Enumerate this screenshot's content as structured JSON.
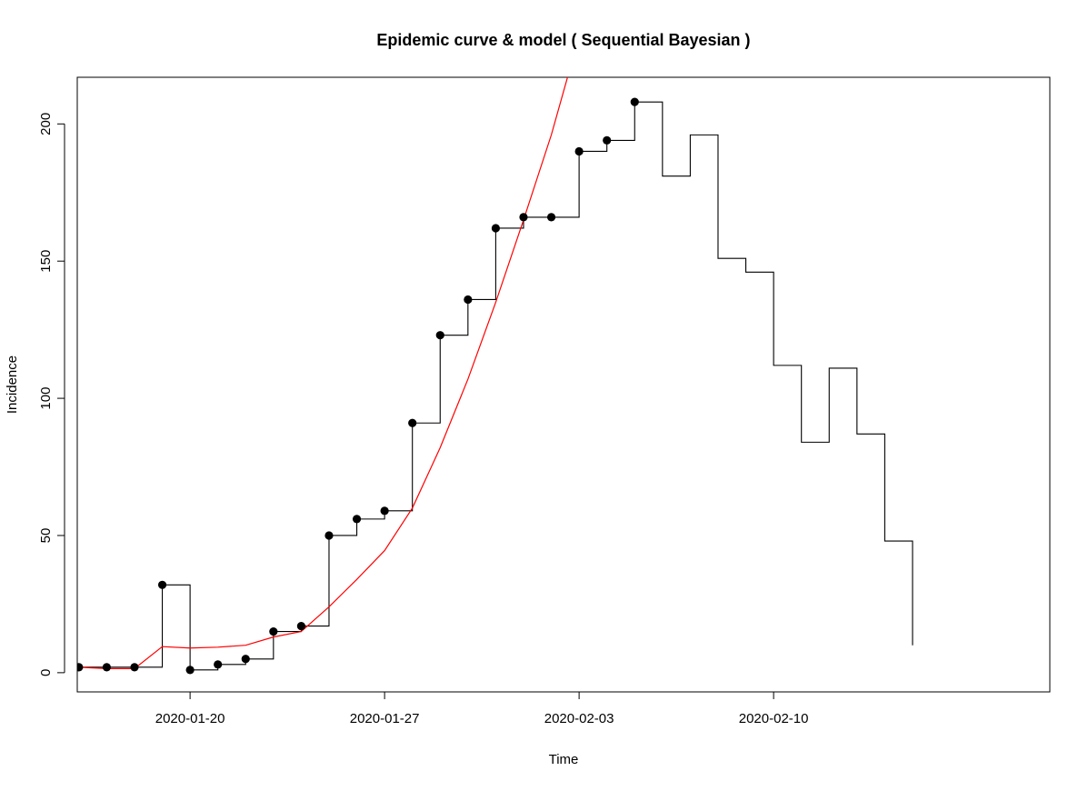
{
  "chart_data": {
    "type": "line",
    "title": "Epidemic curve & model ( Sequential Bayesian )",
    "xlabel": "Time",
    "ylabel": "Incidence",
    "x_start": "2020-01-16",
    "x_ticks": [
      "2020-01-20",
      "2020-01-27",
      "2020-02-03",
      "2020-02-10"
    ],
    "xlim": [
      "2020-01-15",
      "2020-02-20"
    ],
    "y_ticks": [
      0,
      50,
      100,
      150,
      200
    ],
    "ylim": [
      -7,
      217
    ],
    "grid": false,
    "series": [
      {
        "kind": "step",
        "color": "#000000",
        "x": [
          "2020-01-16",
          "2020-01-17",
          "2020-01-18",
          "2020-01-19",
          "2020-01-20",
          "2020-01-21",
          "2020-01-22",
          "2020-01-23",
          "2020-01-24",
          "2020-01-25",
          "2020-01-26",
          "2020-01-27",
          "2020-01-28",
          "2020-01-29",
          "2020-01-30",
          "2020-01-31",
          "2020-02-01",
          "2020-02-02",
          "2020-02-03",
          "2020-02-04",
          "2020-02-05",
          "2020-02-06",
          "2020-02-07",
          "2020-02-08",
          "2020-02-09",
          "2020-02-10",
          "2020-02-11",
          "2020-02-12",
          "2020-02-13",
          "2020-02-14",
          "2020-02-15"
        ],
        "values": [
          2,
          2,
          2,
          32,
          1,
          3,
          5,
          15,
          17,
          50,
          56,
          59,
          91,
          123,
          136,
          162,
          166,
          166,
          190,
          194,
          208,
          181,
          196,
          151,
          146,
          112,
          84,
          111,
          87,
          48,
          10
        ]
      },
      {
        "kind": "points",
        "color": "#000000",
        "x": [
          "2020-01-16",
          "2020-01-17",
          "2020-01-18",
          "2020-01-19",
          "2020-01-20",
          "2020-01-21",
          "2020-01-22",
          "2020-01-23",
          "2020-01-24",
          "2020-01-25",
          "2020-01-26",
          "2020-01-27",
          "2020-01-28",
          "2020-01-29",
          "2020-01-30",
          "2020-01-31",
          "2020-02-01",
          "2020-02-02",
          "2020-02-03",
          "2020-02-04",
          "2020-02-05"
        ],
        "values": [
          2,
          2,
          2,
          32,
          1,
          3,
          5,
          15,
          17,
          50,
          56,
          59,
          91,
          123,
          136,
          162,
          166,
          166,
          190,
          194,
          208
        ]
      },
      {
        "kind": "line",
        "color": "#ff0000",
        "x": [
          "2020-01-16",
          "2020-01-17",
          "2020-01-18",
          "2020-01-19",
          "2020-01-20",
          "2020-01-21",
          "2020-01-22",
          "2020-01-23",
          "2020-01-24",
          "2020-01-25",
          "2020-01-26",
          "2020-01-27",
          "2020-01-28",
          "2020-01-29",
          "2020-01-30",
          "2020-01-31",
          "2020-02-01",
          "2020-02-02",
          "2020-02-03"
        ],
        "values": [
          2,
          1.5,
          1.5,
          9.5,
          9,
          9.3,
          10,
          13,
          15,
          24,
          34,
          44.5,
          60,
          82,
          107,
          135,
          165,
          196,
          232
        ]
      }
    ]
  }
}
